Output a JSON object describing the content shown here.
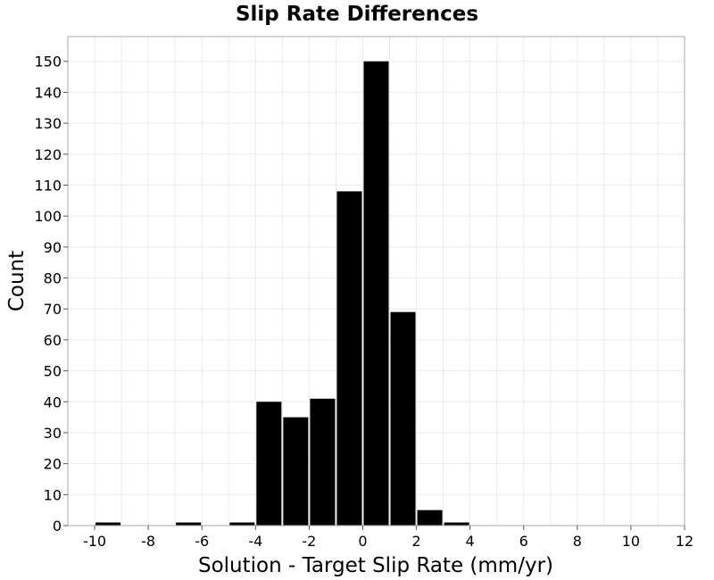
{
  "chart_data": {
    "type": "bar",
    "title": "Slip Rate Differences",
    "xlabel": "Solution - Target Slip Rate (mm/yr)",
    "ylabel": "Count",
    "bin_width": 1,
    "bin_centers": [
      -9.5,
      -8.5,
      -7.5,
      -6.5,
      -5.5,
      -4.5,
      -3.5,
      -2.5,
      -1.5,
      -0.5,
      0.5,
      1.5,
      2.5,
      3.5
    ],
    "values": [
      1,
      0,
      0,
      1,
      0,
      1,
      40,
      35,
      41,
      108,
      150,
      69,
      5,
      1
    ],
    "xlim": [
      -11,
      12
    ],
    "ylim": [
      0,
      158
    ],
    "xticks": [
      -10,
      -8,
      -6,
      -4,
      -2,
      0,
      2,
      4,
      6,
      8,
      10,
      12
    ],
    "yticks": [
      0,
      10,
      20,
      30,
      40,
      50,
      60,
      70,
      80,
      90,
      100,
      110,
      120,
      130,
      140,
      150
    ],
    "bar_color": "#000000",
    "grid": true
  }
}
